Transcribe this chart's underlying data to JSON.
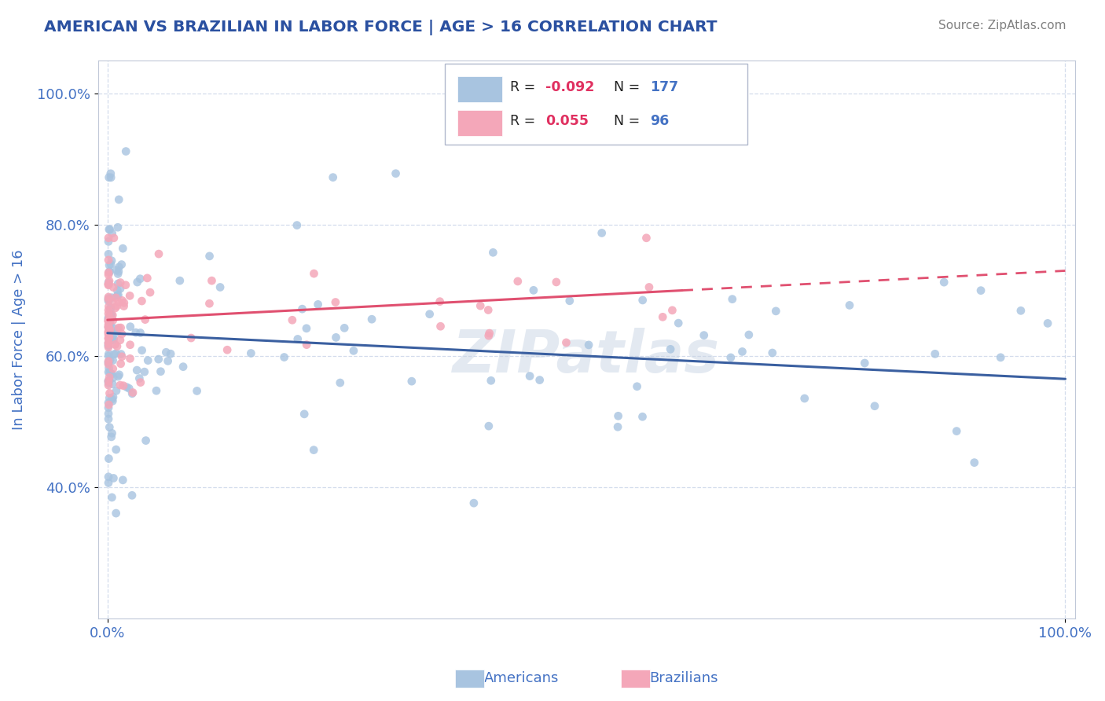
{
  "title": "AMERICAN VS BRAZILIAN IN LABOR FORCE | AGE > 16 CORRELATION CHART",
  "source_text": "Source: ZipAtlas.com",
  "ylabel": "In Labor Force | Age > 16",
  "watermark": "ZIPatlas",
  "xlim": [
    -0.01,
    1.01
  ],
  "ylim": [
    0.2,
    1.05
  ],
  "yticks": [
    0.4,
    0.6,
    0.8,
    1.0
  ],
  "ytick_labels": [
    "40.0%",
    "60.0%",
    "80.0%",
    "100.0%"
  ],
  "xticks": [
    0.0,
    1.0
  ],
  "xtick_labels": [
    "0.0%",
    "100.0%"
  ],
  "legend_R_american": "-0.092",
  "legend_N_american": "177",
  "legend_R_brazilian": "0.055",
  "legend_N_brazilian": "96",
  "american_color": "#a8c4e0",
  "brazilian_color": "#f4a7b9",
  "american_line_color": "#3a5fa0",
  "brazilian_line_color": "#e05070",
  "title_color": "#2a50a0",
  "source_color": "#808080",
  "axis_label_color": "#4472c4",
  "tick_label_color": "#4472c4",
  "legend_N_color": "#4472c4",
  "grid_color": "#c8d4e8",
  "background_color": "#ffffff",
  "am_line_x0": 0.0,
  "am_line_x1": 1.0,
  "am_line_y0": 0.635,
  "am_line_y1": 0.565,
  "br_line_x0": 0.0,
  "br_line_x1": 1.0,
  "br_line_y0": 0.655,
  "br_line_y1": 0.73,
  "br_line_solid_end": 0.6
}
